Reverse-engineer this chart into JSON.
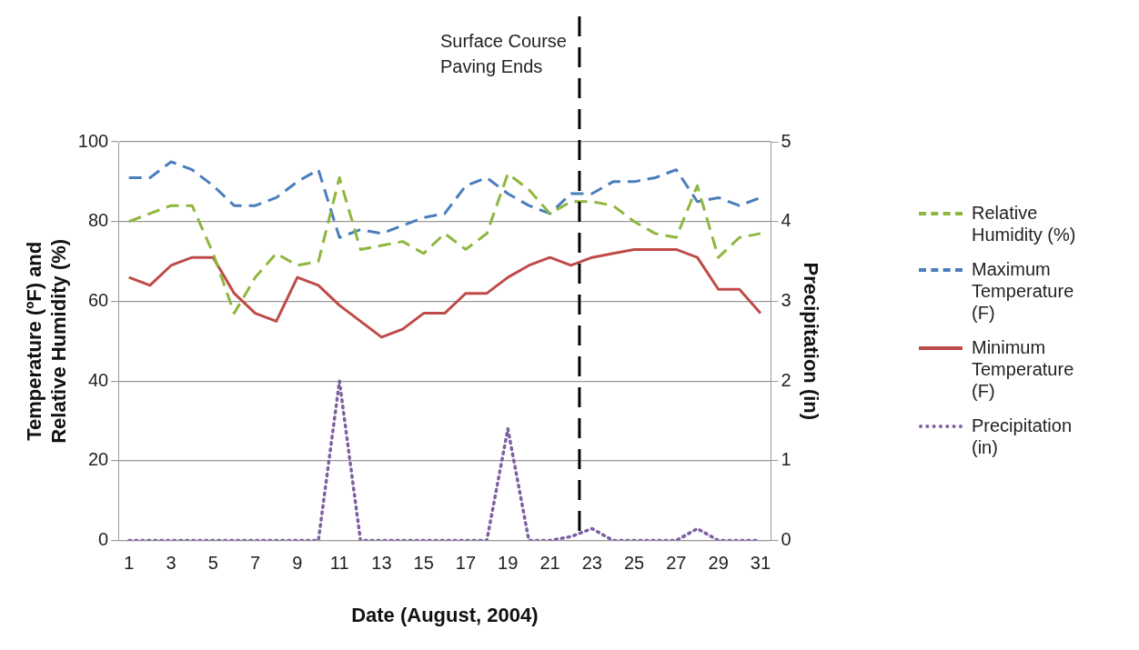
{
  "chart_data": {
    "type": "line",
    "xlabel": "Date (August, 2004)",
    "ylabel": "Temperature (ºF) and Relative Humidity (%)",
    "y2label": "Precipitation (in)",
    "x": [
      1,
      2,
      3,
      4,
      5,
      6,
      7,
      8,
      9,
      10,
      11,
      12,
      13,
      14,
      15,
      16,
      17,
      18,
      19,
      20,
      21,
      22,
      23,
      24,
      25,
      26,
      27,
      28,
      29,
      30,
      31
    ],
    "xlim": [
      0.5,
      31.5
    ],
    "xticks": [
      1,
      3,
      5,
      7,
      9,
      11,
      13,
      15,
      17,
      19,
      21,
      23,
      25,
      27,
      29,
      31
    ],
    "ylim": [
      0,
      100
    ],
    "yticks": [
      0,
      20,
      40,
      60,
      80,
      100
    ],
    "y2lim": [
      0,
      5
    ],
    "y2ticks": [
      0,
      1,
      2,
      3,
      4,
      5
    ],
    "grid": "y",
    "legend": "right",
    "marker": "none",
    "series": [
      {
        "name": "Relative Humidity (%)",
        "color": "#8db73f",
        "line_style": "dashed",
        "values": [
          80,
          82,
          84,
          84,
          72,
          57,
          66,
          72,
          69,
          70,
          91,
          73,
          74,
          75,
          72,
          77,
          73,
          77,
          92,
          88,
          82,
          85,
          85,
          84,
          80,
          77,
          76,
          89,
          71,
          76,
          77
        ]
      },
      {
        "name": "Maximum Temperature (F)",
        "color": "#4a7ebb",
        "line_style": "dashed",
        "values": [
          91,
          91,
          95,
          93,
          89,
          84,
          84,
          86,
          90,
          93,
          76,
          78,
          77,
          79,
          81,
          82,
          89,
          91,
          87,
          84,
          82,
          87,
          87,
          90,
          90,
          91,
          93,
          85,
          86,
          84,
          86
        ]
      },
      {
        "name": "Minimum Temperature (F)",
        "color": "#be4b48",
        "line_style": "solid",
        "values": [
          66,
          64,
          69,
          71,
          71,
          62,
          57,
          55,
          66,
          64,
          59,
          55,
          51,
          53,
          57,
          57,
          62,
          62,
          66,
          69,
          71,
          69,
          71,
          72,
          73,
          73,
          73,
          71,
          63,
          63,
          57
        ]
      },
      {
        "name": "Precipitation (in)",
        "color": "#7d60a0",
        "line_style": "dotted",
        "axis": "y2",
        "values": [
          0,
          0,
          0,
          0,
          0,
          0,
          0,
          0,
          0,
          0,
          2.0,
          0,
          0,
          0,
          0,
          0,
          0,
          0,
          1.4,
          0,
          0,
          0.05,
          0.15,
          0,
          0,
          0,
          0,
          0.15,
          0,
          0,
          0
        ]
      }
    ],
    "ref_lines": [
      {
        "axis": "x",
        "value": 22.4,
        "label": "Surface Course Paving Ends",
        "color": "#000000",
        "line_style": "dashed"
      }
    ]
  }
}
